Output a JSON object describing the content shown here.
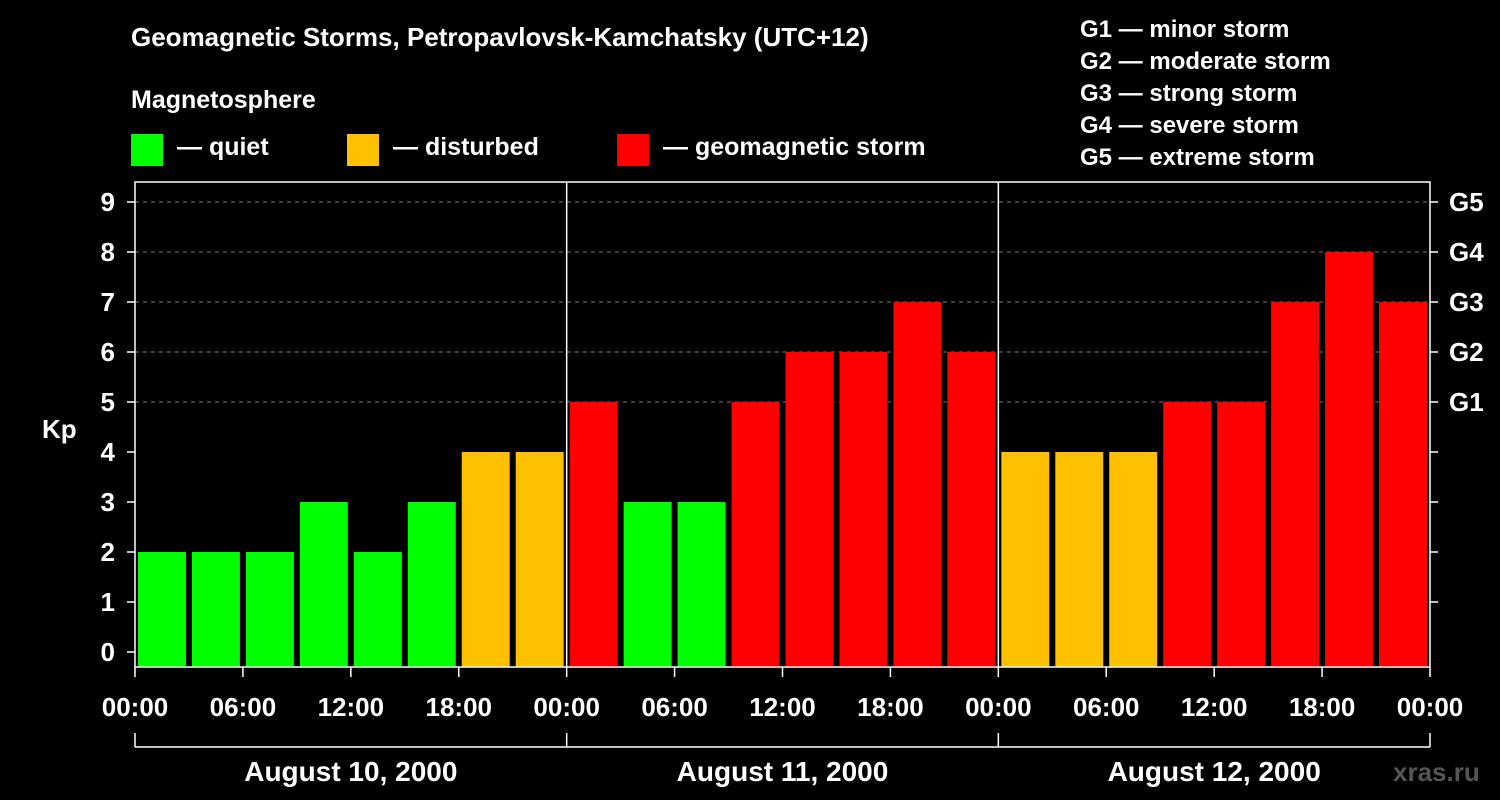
{
  "title": "Geomagnetic Storms, Petropavlovsk-Kamchatsky (UTC+12)",
  "legend": {
    "title": "Magnetosphere",
    "items": [
      {
        "label": "— quiet",
        "color": "#00ff00"
      },
      {
        "label": "— disturbed",
        "color": "#ffc000"
      },
      {
        "label": "— geomagnetic storm",
        "color": "#ff0000"
      }
    ]
  },
  "g_scale": [
    "G1 — minor storm",
    "G2 — moderate storm",
    "G3 — strong storm",
    "G4 — severe storm",
    "G5 — extreme storm"
  ],
  "watermark": "xras.ru",
  "chart_data": {
    "type": "bar",
    "title": "Geomagnetic Storms, Petropavlovsk-Kamchatsky (UTC+12)",
    "ylabel": "Kp",
    "ylim": [
      0,
      9
    ],
    "yticks": [
      "0",
      "1",
      "2",
      "3",
      "4",
      "5",
      "6",
      "7",
      "8",
      "9"
    ],
    "right_ticks": [
      {
        "kp": 5,
        "label": "G1"
      },
      {
        "kp": 6,
        "label": "G2"
      },
      {
        "kp": 7,
        "label": "G3"
      },
      {
        "kp": 8,
        "label": "G4"
      },
      {
        "kp": 9,
        "label": "G5"
      }
    ],
    "xtick_labels": [
      "00:00",
      "06:00",
      "12:00",
      "18:00",
      "00:00",
      "06:00",
      "12:00",
      "18:00",
      "00:00",
      "06:00",
      "12:00",
      "18:00",
      "00:00"
    ],
    "days": [
      "August 10, 2000",
      "August 11, 2000",
      "August 12, 2000"
    ],
    "interval_hours": 3,
    "values": [
      2,
      2,
      2,
      3,
      2,
      3,
      4,
      4,
      5,
      3,
      3,
      5,
      6,
      6,
      7,
      6,
      4,
      4,
      4,
      5,
      5,
      7,
      8,
      7
    ],
    "colors": {
      "quiet": "#00ff00",
      "disturbed": "#ffc000",
      "storm": "#ff0000"
    },
    "thresholds": {
      "disturbed": 4,
      "storm": 5
    },
    "grid": true
  }
}
